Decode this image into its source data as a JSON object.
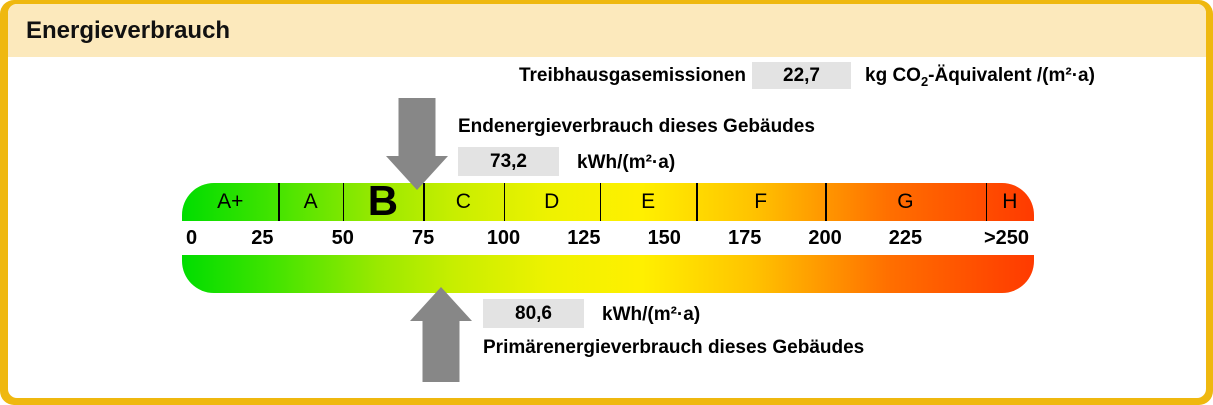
{
  "header": {
    "title": "Energieverbrauch"
  },
  "emissions": {
    "label": "Treibhausgasemissionen",
    "value": "22,7",
    "unit_prefix": "kg CO",
    "unit_sub": "2",
    "unit_suffix": "-Äquivalent /(m²·a)"
  },
  "final_energy": {
    "label": "Endenergieverbrauch dieses Gebäudes",
    "value": "73,2",
    "unit": "kWh/(m²·a)"
  },
  "primary_energy": {
    "label": "Primärenergieverbrauch dieses Gebäudes",
    "value": "80,6",
    "unit": "kWh/(m²·a)"
  },
  "chart_data": {
    "type": "scale",
    "kind": "energy-efficiency-band-tacho",
    "title": "Energieverbrauch",
    "unit": "kWh/(m²·a)",
    "scale_min": 0,
    "scale_render_max": 265,
    "tick_values": [
      0,
      25,
      50,
      75,
      100,
      125,
      150,
      175,
      200,
      225
    ],
    "tick_labels": [
      "0",
      "25",
      "50",
      "75",
      "100",
      "125",
      "150",
      "175",
      "200",
      "225"
    ],
    "max_tick_label": ">250",
    "classes": [
      {
        "label": "A+",
        "from": 0,
        "to": 30,
        "current": false
      },
      {
        "label": "A",
        "from": 30,
        "to": 50,
        "current": false
      },
      {
        "label": "B",
        "from": 50,
        "to": 75,
        "current": true
      },
      {
        "label": "C",
        "from": 75,
        "to": 100,
        "current": false
      },
      {
        "label": "D",
        "from": 100,
        "to": 130,
        "current": false
      },
      {
        "label": "E",
        "from": 130,
        "to": 160,
        "current": false
      },
      {
        "label": "F",
        "from": 160,
        "to": 200,
        "current": false
      },
      {
        "label": "G",
        "from": 200,
        "to": 250,
        "current": false
      },
      {
        "label": "H",
        "from": 250,
        "to": 265,
        "current": false
      }
    ],
    "markers": [
      {
        "name": "Endenergieverbrauch dieses Gebäudes",
        "value": 73.2,
        "display": "73,2",
        "arrow": "down"
      },
      {
        "name": "Primärenergieverbrauch dieses Gebäudes",
        "value": 80.6,
        "display": "80,6",
        "arrow": "up"
      }
    ],
    "emission_value": 22.7,
    "emission_unit": "kg CO2-Äquivalent /(m²·a)",
    "gradient_stops": [
      "#00DD00 0%",
      "#44E400 11%",
      "#9AE900 23%",
      "#C8EE00 32%",
      "#EEF200 43%",
      "#FFF000 54%",
      "#FFC300 67%",
      "#FF6F00 83%",
      "#FF3A00 100%"
    ]
  },
  "colors": {
    "frame": "#EFB80F",
    "header_bg": "#FCE9BC",
    "arrow": "#878787",
    "value_box_bg": "#E3E3E3"
  }
}
